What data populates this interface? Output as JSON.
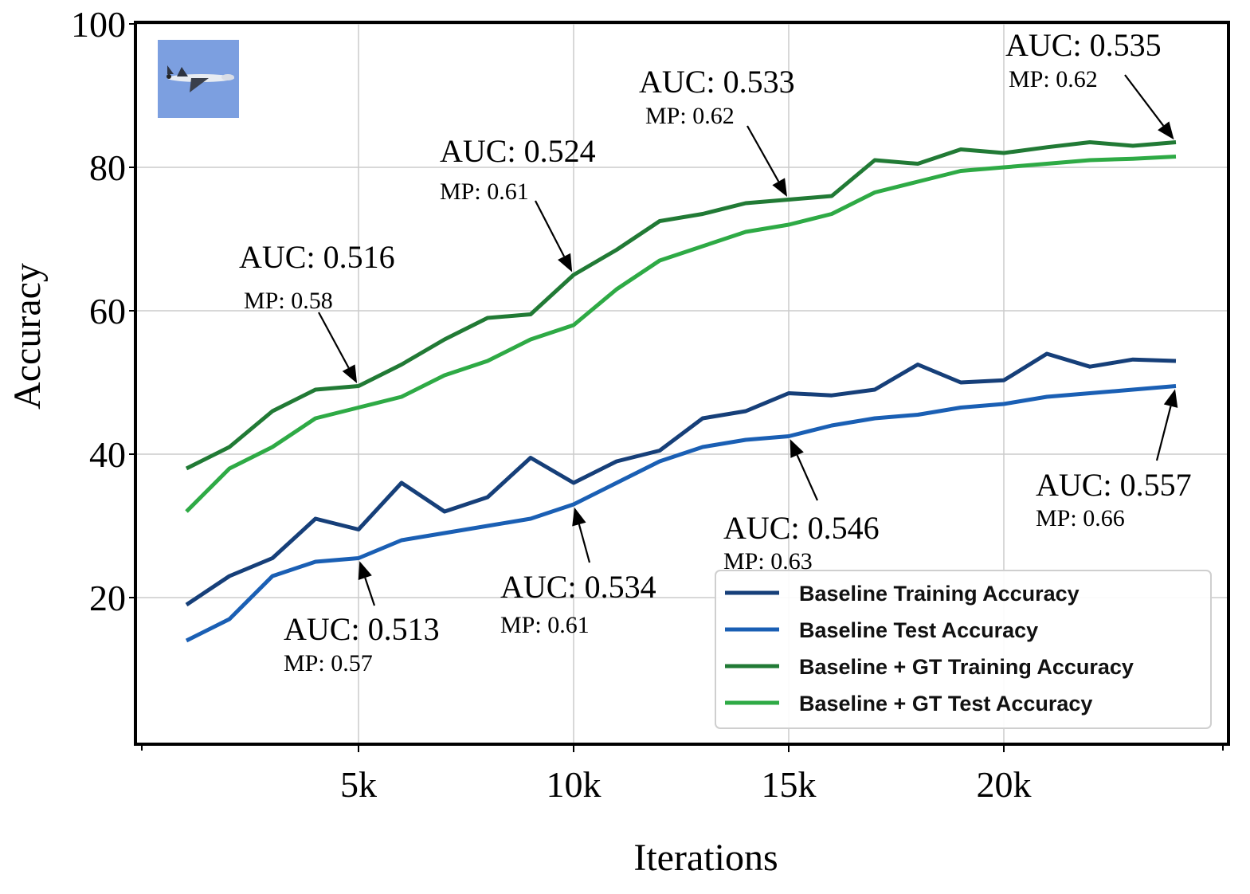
{
  "chart_data": {
    "type": "line",
    "title": "",
    "xlabel": "Iterations",
    "ylabel": "Accuracy",
    "xlim": [
      0,
      25000
    ],
    "ylim": [
      0,
      100
    ],
    "grid": true,
    "legend_position": "bottom-right",
    "x_ticks": [
      {
        "value": 5000,
        "label": "5k"
      },
      {
        "value": 10000,
        "label": "10k"
      },
      {
        "value": 15000,
        "label": "15k"
      },
      {
        "value": 20000,
        "label": "20k"
      }
    ],
    "y_ticks": [
      {
        "value": 20,
        "label": "20"
      },
      {
        "value": 40,
        "label": "40"
      },
      {
        "value": 60,
        "label": "60"
      },
      {
        "value": 80,
        "label": "80"
      },
      {
        "value": 100,
        "label": "100"
      }
    ],
    "x": [
      1000,
      2000,
      3000,
      4000,
      5000,
      6000,
      7000,
      8000,
      9000,
      10000,
      11000,
      12000,
      13000,
      14000,
      15000,
      16000,
      17000,
      18000,
      19000,
      20000,
      21000,
      22000,
      23000,
      24000
    ],
    "series": [
      {
        "name": "Baseline Training Accuracy",
        "color": "#163f79",
        "values": [
          19,
          23,
          25.5,
          31,
          29.5,
          36,
          32,
          34,
          39.5,
          36,
          39,
          40.5,
          45,
          46,
          48.5,
          48.2,
          49,
          52.5,
          50,
          50.3,
          54,
          52.2,
          53.2,
          53
        ]
      },
      {
        "name": "Baseline Test Accuracy",
        "color": "#1a5fb4",
        "values": [
          14,
          17,
          23,
          25,
          25.5,
          28,
          29,
          30,
          31,
          33,
          36,
          39,
          41,
          42,
          42.5,
          44,
          45,
          45.5,
          46.5,
          47,
          48,
          48.5,
          49,
          49.5
        ]
      },
      {
        "name": "Baseline + GT Training Accuracy",
        "color": "#217a35",
        "values": [
          38,
          41,
          46,
          49,
          49.5,
          52.5,
          56,
          59,
          59.5,
          65,
          68.5,
          72.5,
          73.5,
          75,
          75.5,
          76,
          81,
          80.5,
          82.5,
          82,
          82.8,
          83.5,
          83,
          83.5
        ]
      },
      {
        "name": "Baseline + GT Test Accuracy",
        "color": "#2eaa45",
        "values": [
          32,
          38,
          41,
          45,
          46.5,
          48,
          51,
          53,
          56,
          58,
          63,
          67,
          69,
          71,
          72,
          73.5,
          76.5,
          78,
          79.5,
          80,
          80.5,
          81,
          81.2,
          81.5
        ]
      }
    ],
    "annotations": [
      {
        "auc": "AUC: 0.516",
        "mp": "MP: 0.58",
        "series": "Baseline + GT Training Accuracy",
        "x": 5000,
        "y": 49.5
      },
      {
        "auc": "AUC: 0.524",
        "mp": "MP: 0.61",
        "series": "Baseline + GT Training Accuracy",
        "x": 10000,
        "y": 65
      },
      {
        "auc": "AUC: 0.533",
        "mp": "MP: 0.62",
        "series": "Baseline + GT Training Accuracy",
        "x": 15000,
        "y": 75.5
      },
      {
        "auc": "AUC: 0.535",
        "mp": "MP: 0.62",
        "series": "Baseline + GT Training Accuracy",
        "x": 24000,
        "y": 83.5
      },
      {
        "auc": "AUC: 0.513",
        "mp": "MP: 0.57",
        "series": "Baseline Test Accuracy",
        "x": 5000,
        "y": 25.5
      },
      {
        "auc": "AUC: 0.534",
        "mp": "MP: 0.61",
        "series": "Baseline Test Accuracy",
        "x": 10000,
        "y": 33
      },
      {
        "auc": "AUC: 0.546",
        "mp": "MP: 0.63",
        "series": "Baseline Test Accuracy",
        "x": 15000,
        "y": 42.5
      },
      {
        "auc": "AUC: 0.557",
        "mp": "MP: 0.66",
        "series": "Baseline Test Accuracy",
        "x": 24000,
        "y": 49.5
      }
    ],
    "inset_image": "airplane-thumbnail"
  }
}
